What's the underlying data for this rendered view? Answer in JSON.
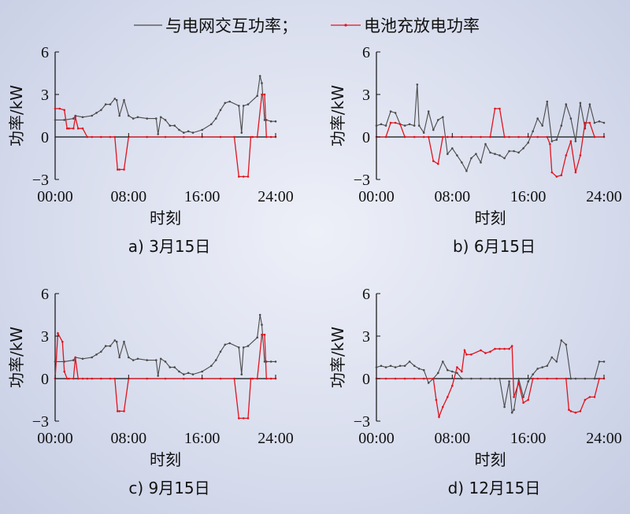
{
  "legend": {
    "grid_label": "与电网交互功率；",
    "battery_label": "电池充放电功率"
  },
  "colors": {
    "grid_series": "#4a4a4a",
    "battery_series": "#e0141e",
    "axis": "#111111"
  },
  "chart_data": [
    {
      "type": "line",
      "caption": "a) 3月15日",
      "xlabel": "时刻",
      "ylabel": "功率/kW",
      "xlim": [
        0,
        24
      ],
      "ylim": [
        -3,
        6
      ],
      "xticks": [
        "00:00",
        "08:00",
        "16:00",
        "24:00"
      ],
      "yticks": [
        "−3",
        "0",
        "3",
        "6"
      ],
      "series": [
        {
          "name": "与电网交互功率",
          "x": [
            0,
            1,
            2,
            2.2,
            3,
            4,
            4.5,
            5,
            5.5,
            6,
            6.5,
            6.7,
            7,
            7.5,
            8,
            8.5,
            9,
            10,
            11,
            11.2,
            11.5,
            12,
            12.5,
            13,
            13.5,
            14,
            14.5,
            15,
            16,
            17,
            17.5,
            18,
            18.5,
            19,
            20,
            20.3,
            20.5,
            21,
            22,
            22.3,
            22.5,
            22.8,
            23,
            23.5,
            24
          ],
          "values": [
            1.2,
            1.2,
            1.3,
            1.5,
            1.4,
            1.5,
            1.7,
            1.9,
            2.3,
            2.3,
            2.7,
            2.6,
            1.5,
            2.6,
            1.5,
            1.3,
            1.4,
            1.3,
            1.3,
            0.2,
            1.4,
            1.2,
            0.8,
            0.8,
            0.5,
            0.3,
            0.4,
            0.3,
            0.5,
            0.9,
            1.3,
            1.9,
            2.4,
            2.5,
            2.2,
            0.3,
            2.2,
            2.3,
            2.9,
            4.3,
            3.8,
            1.2,
            1.2,
            1.1,
            1.1
          ]
        },
        {
          "name": "电池充放电功率",
          "x": [
            0,
            0.5,
            1,
            1.3,
            1.5,
            2,
            2.2,
            2.5,
            3,
            3.5,
            4,
            5,
            6,
            6.5,
            6.8,
            7,
            7.5,
            8,
            10,
            12,
            14,
            16,
            18,
            19.5,
            20,
            20.5,
            21,
            21.3,
            21.5,
            22,
            22.5,
            22.8,
            23,
            23.5,
            24
          ],
          "values": [
            2.0,
            2.0,
            1.9,
            0.6,
            0.6,
            0.6,
            1.4,
            0.6,
            0.6,
            0,
            0,
            0,
            0,
            0,
            -2.3,
            -2.3,
            -2.3,
            0,
            0,
            0,
            0,
            0,
            0,
            0,
            -2.8,
            -2.8,
            -2.8,
            0,
            0,
            0,
            3.0,
            3.0,
            0.0,
            0,
            0
          ]
        }
      ]
    },
    {
      "type": "line",
      "caption": "b) 6月15日",
      "xlabel": "时刻",
      "ylabel": "功率/kW",
      "xlim": [
        0,
        24
      ],
      "ylim": [
        -3,
        6
      ],
      "xticks": [
        "00:00",
        "08:00",
        "16:00",
        "24:00"
      ],
      "yticks": [
        "−3",
        "0",
        "3",
        "6"
      ],
      "series": [
        {
          "name": "与电网交互功率",
          "x": [
            0,
            0.5,
            1,
            1.5,
            2,
            2.5,
            3,
            3.5,
            4,
            4.3,
            4.5,
            5,
            5.5,
            6,
            6.5,
            7,
            7.5,
            8,
            8.5,
            9,
            9.5,
            10,
            10.5,
            11,
            11.5,
            12,
            12.5,
            13,
            13.5,
            14,
            14.5,
            15,
            15.5,
            16,
            16.5,
            17,
            17.5,
            18,
            18.5,
            19,
            19.5,
            20,
            20.5,
            21,
            21.5,
            22,
            22.5,
            23,
            23.5,
            24
          ],
          "values": [
            0.8,
            0.9,
            0.8,
            1.8,
            1.7,
            0.9,
            0.8,
            0.9,
            0.8,
            3.7,
            0.8,
            0.3,
            1.8,
            0.5,
            1.2,
            1.4,
            -1.2,
            -0.8,
            -1.3,
            -1.8,
            -2.4,
            -1.5,
            -1.2,
            -1.8,
            -0.5,
            -1.1,
            -1.2,
            -1.3,
            -1.5,
            -1.0,
            -1.0,
            -1.1,
            -0.8,
            -0.4,
            0.4,
            1.3,
            0.8,
            2.5,
            -0.3,
            -0.2,
            0.8,
            2.3,
            1.3,
            -0.3,
            2.4,
            0.6,
            2.3,
            1.0,
            1.1,
            1.0
          ]
        },
        {
          "name": "电池充放电功率",
          "x": [
            0,
            1,
            1.5,
            2,
            2.5,
            3,
            4,
            5,
            5.5,
            6,
            6.5,
            7,
            7.5,
            8,
            9,
            10,
            11,
            12,
            12.5,
            13,
            13.5,
            14,
            15,
            16,
            17,
            18,
            18.3,
            18.5,
            19,
            19.5,
            20,
            20.5,
            21,
            21.5,
            22,
            22.5,
            23,
            24
          ],
          "values": [
            0,
            0,
            1.0,
            1.0,
            0.9,
            0,
            0,
            0,
            0,
            -1.7,
            -1.9,
            0,
            0,
            0,
            0,
            0,
            0,
            0,
            2.0,
            2.0,
            0,
            0,
            0,
            0,
            0,
            0,
            -0.5,
            -2.5,
            -2.8,
            -2.7,
            -1.3,
            -0.3,
            -2.5,
            -1.3,
            1.0,
            1.0,
            0,
            0
          ]
        }
      ]
    },
    {
      "type": "line",
      "caption": "c) 9月15日",
      "xlabel": "时刻",
      "ylabel": "功率/kW",
      "xlim": [
        0,
        24
      ],
      "ylim": [
        -3,
        6
      ],
      "xticks": [
        "00:00",
        "08:00",
        "16:00",
        "24:00"
      ],
      "yticks": [
        "−3",
        "0",
        "3",
        "6"
      ],
      "series": [
        {
          "name": "与电网交互功率",
          "x": [
            0,
            1,
            2,
            2.2,
            3,
            4,
            4.5,
            5,
            5.5,
            6,
            6.5,
            6.7,
            7,
            7.5,
            8,
            8.5,
            9,
            10,
            11,
            11.2,
            11.5,
            12,
            12.5,
            13,
            13.5,
            14,
            14.5,
            15,
            16,
            17,
            17.5,
            18,
            18.5,
            19,
            20,
            20.3,
            20.5,
            21,
            22,
            22.3,
            22.5,
            22.8,
            23,
            23.5,
            24
          ],
          "values": [
            1.2,
            1.2,
            1.3,
            1.5,
            1.4,
            1.5,
            1.7,
            1.9,
            2.3,
            2.3,
            2.7,
            2.6,
            1.5,
            2.6,
            1.5,
            1.3,
            1.4,
            1.3,
            1.3,
            0.2,
            1.4,
            1.2,
            0.8,
            0.8,
            0.5,
            0.3,
            0.4,
            0.3,
            0.5,
            0.9,
            1.3,
            1.9,
            2.4,
            2.5,
            2.2,
            0.3,
            2.2,
            2.3,
            2.9,
            4.5,
            3.8,
            1.2,
            1.2,
            1.2,
            1.2
          ]
        },
        {
          "name": "电池充放电功率",
          "x": [
            0,
            0.3,
            0.8,
            1,
            1.3,
            1.5,
            2,
            2.2,
            2.5,
            3,
            3.5,
            4,
            5,
            6,
            6.5,
            6.8,
            7,
            7.5,
            8,
            10,
            12,
            14,
            16,
            18,
            19.5,
            20,
            20.5,
            21,
            21.3,
            21.5,
            22,
            22.5,
            22.8,
            23,
            23.5,
            24
          ],
          "values": [
            0,
            3.2,
            2.6,
            0.5,
            0,
            0,
            0,
            1.5,
            0,
            0,
            0,
            0,
            0,
            0,
            0,
            -2.3,
            -2.3,
            -2.3,
            0,
            0,
            0,
            0,
            0,
            0,
            0,
            -2.8,
            -2.8,
            -2.8,
            0,
            0,
            0,
            3.1,
            3.1,
            0,
            0,
            0
          ]
        }
      ]
    },
    {
      "type": "line",
      "caption": "d) 12月15日",
      "xlabel": "时刻",
      "ylabel": "功率/kW",
      "xlim": [
        0,
        24
      ],
      "ylim": [
        -3,
        6
      ],
      "xticks": [
        "00:00",
        "08:00",
        "16:00",
        "24:00"
      ],
      "yticks": [
        "−3",
        "0",
        "3",
        "6"
      ],
      "series": [
        {
          "name": "与电网交互功率",
          "x": [
            0,
            0.5,
            1,
            1.5,
            2,
            2.5,
            3,
            3.5,
            4,
            4.5,
            5,
            5.5,
            6,
            6.5,
            7,
            7.5,
            8,
            8.5,
            9,
            10,
            11,
            12,
            12.5,
            13,
            13.5,
            14,
            14.3,
            14.5,
            15,
            15.5,
            16,
            16.5,
            17,
            17.5,
            18,
            18.5,
            19,
            19.5,
            20,
            20.5,
            21,
            22,
            23,
            23.5,
            24
          ],
          "values": [
            0.8,
            0.9,
            0.8,
            0.9,
            0.8,
            0.9,
            0.9,
            1.2,
            0.9,
            0.7,
            0.6,
            -0.3,
            0.0,
            0.4,
            1.2,
            0.6,
            0.5,
            0.4,
            0,
            0,
            0,
            0,
            0,
            0,
            -2.0,
            -0.2,
            -2.4,
            -2.2,
            0,
            -1.3,
            -0.2,
            0.3,
            0.7,
            0.8,
            0.9,
            1.5,
            1.2,
            2.7,
            2.4,
            0,
            0,
            0,
            0,
            1.2,
            1.2
          ]
        },
        {
          "name": "电池充放电功率",
          "x": [
            0,
            1,
            2,
            3,
            4,
            5,
            6,
            6.3,
            6.6,
            7,
            7.5,
            8,
            8.5,
            9,
            9.3,
            9.5,
            10,
            11,
            11.5,
            12,
            12.5,
            13,
            13.5,
            14,
            14.3,
            14.5,
            15,
            15.5,
            16,
            16.5,
            17,
            18,
            19,
            20,
            20.3,
            20.5,
            21,
            21.5,
            22,
            22.5,
            23,
            23.5,
            24
          ],
          "values": [
            0,
            0,
            0,
            0,
            0,
            0,
            0,
            -1.5,
            -2.7,
            -2.0,
            -1.3,
            -0.5,
            0.8,
            0.5,
            2.0,
            1.7,
            1.7,
            2.0,
            1.8,
            1.9,
            2.1,
            2.1,
            2.1,
            2.1,
            2.3,
            -1.3,
            -0.3,
            -1.7,
            -1.5,
            0,
            0,
            0,
            0,
            0,
            -2.2,
            -2.3,
            -2.4,
            -2.3,
            -1.5,
            -1.3,
            -1.3,
            0,
            0
          ]
        }
      ]
    }
  ]
}
